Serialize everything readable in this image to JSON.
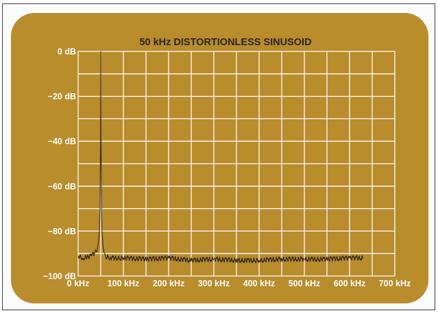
{
  "chart_data": {
    "type": "line",
    "title": "50 kHz DISTORTIONLESS SINUSOID",
    "xlabel": "",
    "ylabel": "",
    "xlim": [
      0,
      700
    ],
    "ylim": [
      -100,
      0
    ],
    "x_ticks": [
      "0 kHz",
      "100 kHz",
      "200 kHz",
      "300 kHz",
      "400 kHz",
      "500 kHz",
      "600 kHz",
      "700 kHz"
    ],
    "y_ticks": [
      "0 dB",
      "−20 dB",
      "−40 dB",
      "−60 dB",
      "−80 dB",
      "−100 dB"
    ],
    "grid": true,
    "x_grid_step": 50,
    "y_grid_step": 10,
    "series": [
      {
        "color": "#2a2418",
        "x": [
          0,
          10,
          20,
          30,
          40,
          44,
          47,
          48.5,
          49.5,
          50,
          50.5,
          51.5,
          53,
          56,
          60,
          70,
          100,
          150,
          200,
          250,
          300,
          350,
          400,
          450,
          500,
          550,
          600,
          630
        ],
        "y": [
          -91,
          -92,
          -91.5,
          -91,
          -89,
          -86,
          -80,
          -70,
          -40,
          0,
          -40,
          -70,
          -82,
          -88,
          -91,
          -92,
          -92,
          -92.5,
          -92,
          -93,
          -92.5,
          -93,
          -93,
          -92.5,
          -92.5,
          -92.5,
          -92,
          -92
        ]
      }
    ],
    "colors": {
      "background": "#b98c2c",
      "grid": "#ffffff",
      "trace": "#2a2418"
    }
  }
}
